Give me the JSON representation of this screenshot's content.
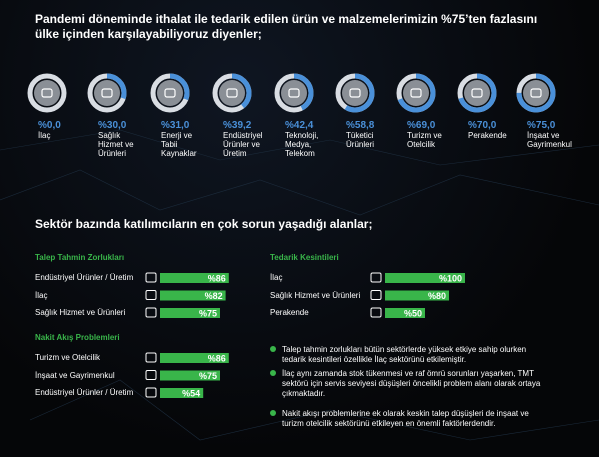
{
  "title": "Pandemi döneminde ithalat ile tedarik edilen ürün ve malzemelerimizin %75’ten fazlasını ülke içinden karşılayabiliyoruz diyenler;",
  "section_title": "Sektör bazında katılımcıların en çok sorun yaşadığı alanlar;",
  "bullets": [
    "Talep tahmin zorlukları bütün sektörlerde yüksek etkiye sahip olurken tedarik kesintileri özellikle İlaç sektörünü etkilemiştir.",
    "İlaç aynı zamanda stok tükenmesi ve raf ömrü sorunları yaşarken, TMT sektörü için servis seviyesi düşüşleri öncelikli problem alanı olarak ortaya çıkmaktadır.",
    "Nakit akışı problemlerine ek olarak keskin talep düşüşleri de inşaat ve turizm otelcilik sektörünü etkileyen en önemli faktörlerdendir."
  ],
  "chart_data": [
    {
      "type": "donut",
      "color": "#4a90d9",
      "categories": [
        "İlaç",
        "Sağlık Hizmet ve Ürünleri",
        "Enerji ve Tabii Kaynaklar",
        "Endüstriyel Ürünler ve Üretim",
        "Teknoloji, Medya, Telekom",
        "Tüketici Ürünleri",
        "Turizm ve Otelcilik",
        "Perakende",
        "İnşaat ve Gayrimenkul"
      ],
      "values": [
        0.0,
        30.0,
        31.0,
        39.2,
        42.4,
        58.8,
        69.0,
        70.0,
        75.0
      ],
      "value_labels": [
        "%0,0",
        "%30,0",
        "%31,0",
        "%39,2",
        "%42,4",
        "%58,8",
        "%69,0",
        "%70,0",
        "%75,0"
      ]
    },
    {
      "type": "bar",
      "title": "Talep Tahmin Zorlukları",
      "color": "#39b54a",
      "xlim": [
        0,
        100
      ],
      "categories": [
        "Endüstriyel Ürünler / Üretim",
        "İlaç",
        "Sağlık Hizmet ve Ürünleri"
      ],
      "values": [
        86,
        82,
        75
      ],
      "value_labels": [
        "%86",
        "%82",
        "%75"
      ]
    },
    {
      "type": "bar",
      "title": "Nakit Akış Problemleri",
      "color": "#39b54a",
      "xlim": [
        0,
        100
      ],
      "categories": [
        "Turizm ve Otelcilik",
        "İnşaat ve Gayrimenkul",
        "Endüstriyel Ürünler / Üretim"
      ],
      "values": [
        86,
        75,
        54
      ],
      "value_labels": [
        "%86",
        "%75",
        "%54"
      ]
    },
    {
      "type": "bar",
      "title": "Tedarik Kesintileri",
      "color": "#39b54a",
      "xlim": [
        0,
        100
      ],
      "categories": [
        "İlaç",
        "Sağlık Hizmet ve Ürünleri",
        "Perakende"
      ],
      "values": [
        100,
        80,
        50
      ],
      "value_labels": [
        "%100",
        "%80",
        "%50"
      ]
    }
  ]
}
